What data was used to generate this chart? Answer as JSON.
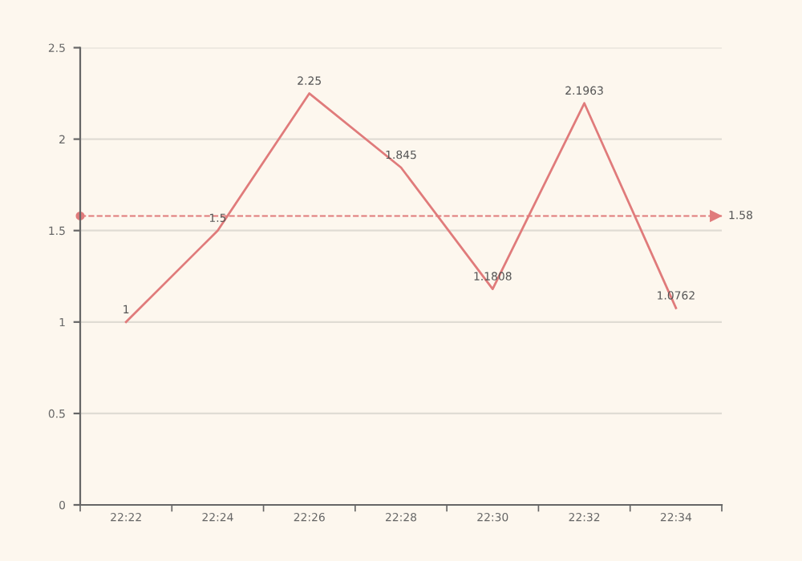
{
  "chart_data": {
    "type": "line",
    "categories": [
      "22:22",
      "22:24",
      "22:26",
      "22:28",
      "22:30",
      "22:32",
      "22:34"
    ],
    "series": [
      {
        "color": "#e07b7b",
        "values": [
          1,
          1.5,
          2.25,
          1.845,
          1.1808,
          2.1963,
          1.0762
        ]
      }
    ],
    "ylim": [
      0,
      2.5
    ],
    "yticks": [
      0,
      0.5,
      1,
      1.5,
      2,
      2.5
    ],
    "grid": "y",
    "data_labels": true,
    "marker": "none",
    "line_style": "solid",
    "ref_lines": [
      {
        "axis": "y",
        "value": 1.58,
        "label": "1.58",
        "color": "#e07b7b",
        "line_style": "dashed"
      }
    ]
  }
}
